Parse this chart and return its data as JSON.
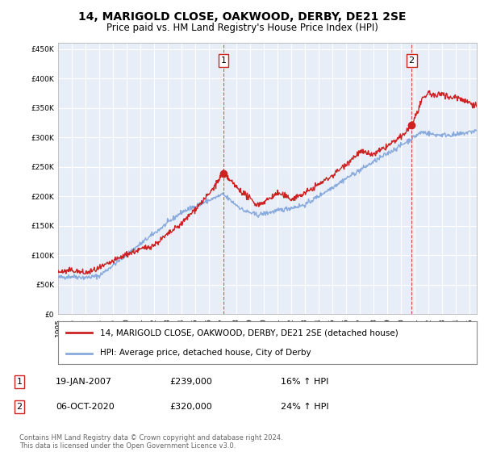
{
  "title": "14, MARIGOLD CLOSE, OAKWOOD, DERBY, DE21 2SE",
  "subtitle": "Price paid vs. HM Land Registry's House Price Index (HPI)",
  "footer": "Contains HM Land Registry data © Crown copyright and database right 2024.\nThis data is licensed under the Open Government Licence v3.0.",
  "legend_line1": "14, MARIGOLD CLOSE, OAKWOOD, DERBY, DE21 2SE (detached house)",
  "legend_line2": "HPI: Average price, detached house, City of Derby",
  "annotation1_label": "1",
  "annotation1_date": "19-JAN-2007",
  "annotation1_price": "£239,000",
  "annotation1_hpi": "16% ↑ HPI",
  "annotation2_label": "2",
  "annotation2_date": "06-OCT-2020",
  "annotation2_price": "£320,000",
  "annotation2_hpi": "24% ↑ HPI",
  "red_color": "#cc2222",
  "blue_color": "#88aadd",
  "background_color": "#ffffff",
  "chart_bg_color": "#e8eef8",
  "grid_color": "#ffffff",
  "ylim": [
    0,
    460000
  ],
  "yticks": [
    0,
    50000,
    100000,
    150000,
    200000,
    250000,
    300000,
    350000,
    400000,
    450000
  ],
  "marker1_year": 2007.05,
  "marker1_value": 239000,
  "marker2_year": 2020.75,
  "marker2_value": 320000,
  "vline1_year": 2007.05,
  "vline2_year": 2020.75
}
